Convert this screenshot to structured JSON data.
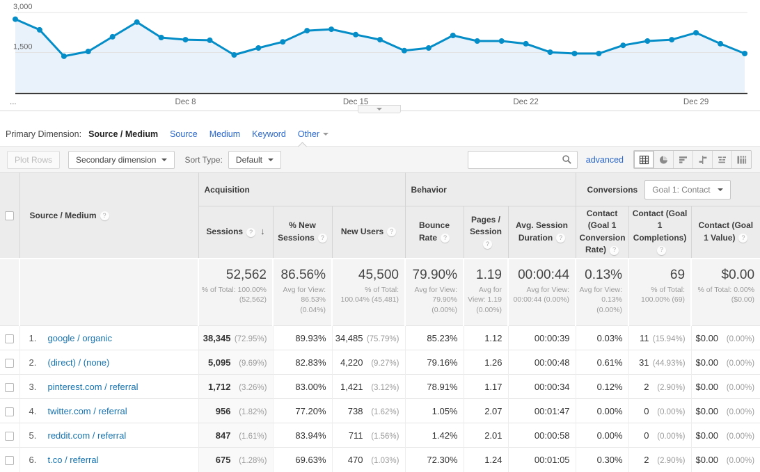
{
  "colors": {
    "chart_line": "#058dc7",
    "chart_fill": "#e9f2fa",
    "nav_link_blue": "#2a66c9",
    "row_link_blue": "#1673b0",
    "toolbar_bg": "#f5f5f5",
    "table_header_bg": "#ececec",
    "summary_bg": "#f4f4f4"
  },
  "icons": {
    "help": "?",
    "sort_desc": "↓"
  },
  "chart_data": {
    "type": "line",
    "series_name": "Sessions",
    "x": [
      "Dec 1",
      "Dec 2",
      "Dec 3",
      "Dec 4",
      "Dec 5",
      "Dec 6",
      "Dec 7",
      "Dec 8",
      "Dec 9",
      "Dec 10",
      "Dec 11",
      "Dec 12",
      "Dec 13",
      "Dec 14",
      "Dec 15",
      "Dec 16",
      "Dec 17",
      "Dec 18",
      "Dec 19",
      "Dec 20",
      "Dec 21",
      "Dec 22",
      "Dec 23",
      "Dec 24",
      "Dec 25",
      "Dec 26",
      "Dec 27",
      "Dec 28",
      "Dec 29",
      "Dec 30",
      "Dec 31"
    ],
    "values": [
      2750,
      2350,
      1360,
      1540,
      2090,
      2640,
      2060,
      1980,
      1960,
      1410,
      1670,
      1900,
      2320,
      2370,
      2170,
      1980,
      1570,
      1670,
      2140,
      1930,
      1930,
      1830,
      1510,
      1460,
      1460,
      1770,
      1930,
      1980,
      2240,
      1830,
      1460
    ],
    "ylim": [
      0,
      3000
    ],
    "y_ticks": [
      {
        "value": 1500,
        "label": "1,500"
      },
      {
        "value": 3000,
        "label": "3,000"
      }
    ],
    "x_ticks": [
      {
        "index": 0,
        "label": "..."
      },
      {
        "index": 7,
        "label": "Dec 8"
      },
      {
        "index": 14,
        "label": "Dec 15"
      },
      {
        "index": 21,
        "label": "Dec 22"
      },
      {
        "index": 28,
        "label": "Dec 29"
      }
    ],
    "grid": true,
    "legend": "none"
  },
  "primary_dimension": {
    "label": "Primary Dimension:",
    "selected": "Source / Medium",
    "options": [
      "Source",
      "Medium",
      "Keyword"
    ],
    "other_label": "Other"
  },
  "toolbar": {
    "plot_rows": "Plot Rows",
    "secondary_dimension": "Secondary dimension",
    "sort_type_label": "Sort Type:",
    "sort_type_value": "Default",
    "search_value": "",
    "advanced": "advanced",
    "view_icons": [
      "data-grid",
      "percentage",
      "performance",
      "comparison",
      "term-cloud",
      "pivot"
    ],
    "active_view": 0
  },
  "table": {
    "row_header": "Source / Medium",
    "groups": [
      {
        "label": "Acquisition"
      },
      {
        "label": "Behavior"
      },
      {
        "label": "Conversions",
        "goal_selector": "Goal 1: Contact"
      }
    ],
    "columns": [
      {
        "label": "Sessions",
        "sorted": true
      },
      {
        "label": "% New Sessions"
      },
      {
        "label": "New Users"
      },
      {
        "label": "Bounce Rate"
      },
      {
        "label": "Pages / Session"
      },
      {
        "label": "Avg. Session Duration"
      },
      {
        "label": "Contact (Goal 1 Conversion Rate)"
      },
      {
        "label": "Contact (Goal 1 Completions)"
      },
      {
        "label": "Contact (Goal 1 Value)"
      }
    ],
    "summary": [
      {
        "value": "52,562",
        "sub": "% of Total: 100.00% (52,562)"
      },
      {
        "value": "86.56%",
        "sub": "Avg for View: 86.53% (0.04%)"
      },
      {
        "value": "45,500",
        "sub": "% of Total: 100.04% (45,481)"
      },
      {
        "value": "79.90%",
        "sub": "Avg for View: 79.90% (0.00%)"
      },
      {
        "value": "1.19",
        "sub": "Avg for View: 1.19 (0.00%)"
      },
      {
        "value": "00:00:44",
        "sub": "Avg for View: 00:00:44 (0.00%)"
      },
      {
        "value": "0.13%",
        "sub": "Avg for View: 0.13% (0.00%)"
      },
      {
        "value": "69",
        "sub": "% of Total: 100.00% (69)"
      },
      {
        "value": "$0.00",
        "sub": "% of Total: 0.00% ($0.00)"
      }
    ],
    "rows": [
      {
        "num": "1.",
        "source": "google / organic",
        "metrics": [
          {
            "v": "38,345",
            "p": "(72.95%)"
          },
          {
            "v": "89.93%"
          },
          {
            "v": "34,485",
            "p": "(75.79%)"
          },
          {
            "v": "85.23%"
          },
          {
            "v": "1.12"
          },
          {
            "v": "00:00:39"
          },
          {
            "v": "0.03%"
          },
          {
            "v": "11",
            "p": "(15.94%)"
          },
          {
            "v": "$0.00",
            "p": "(0.00%)"
          }
        ]
      },
      {
        "num": "2.",
        "source": "(direct) / (none)",
        "metrics": [
          {
            "v": "5,095",
            "p": "(9.69%)"
          },
          {
            "v": "82.83%"
          },
          {
            "v": "4,220",
            "p": "(9.27%)"
          },
          {
            "v": "79.16%"
          },
          {
            "v": "1.26"
          },
          {
            "v": "00:00:48"
          },
          {
            "v": "0.61%"
          },
          {
            "v": "31",
            "p": "(44.93%)"
          },
          {
            "v": "$0.00",
            "p": "(0.00%)"
          }
        ]
      },
      {
        "num": "3.",
        "source": "pinterest.com / referral",
        "metrics": [
          {
            "v": "1,712",
            "p": "(3.26%)"
          },
          {
            "v": "83.00%"
          },
          {
            "v": "1,421",
            "p": "(3.12%)"
          },
          {
            "v": "78.91%"
          },
          {
            "v": "1.17"
          },
          {
            "v": "00:00:34"
          },
          {
            "v": "0.12%"
          },
          {
            "v": "2",
            "p": "(2.90%)"
          },
          {
            "v": "$0.00",
            "p": "(0.00%)"
          }
        ]
      },
      {
        "num": "4.",
        "source": "twitter.com / referral",
        "metrics": [
          {
            "v": "956",
            "p": "(1.82%)"
          },
          {
            "v": "77.20%"
          },
          {
            "v": "738",
            "p": "(1.62%)"
          },
          {
            "v": "1.05%"
          },
          {
            "v": "2.07"
          },
          {
            "v": "00:01:47"
          },
          {
            "v": "0.00%"
          },
          {
            "v": "0",
            "p": "(0.00%)"
          },
          {
            "v": "$0.00",
            "p": "(0.00%)"
          }
        ]
      },
      {
        "num": "5.",
        "source": "reddit.com / referral",
        "metrics": [
          {
            "v": "847",
            "p": "(1.61%)"
          },
          {
            "v": "83.94%"
          },
          {
            "v": "711",
            "p": "(1.56%)"
          },
          {
            "v": "1.42%"
          },
          {
            "v": "2.01"
          },
          {
            "v": "00:00:58"
          },
          {
            "v": "0.00%"
          },
          {
            "v": "0",
            "p": "(0.00%)"
          },
          {
            "v": "$0.00",
            "p": "(0.00%)"
          }
        ]
      },
      {
        "num": "6.",
        "source": "t.co / referral",
        "metrics": [
          {
            "v": "675",
            "p": "(1.28%)"
          },
          {
            "v": "69.63%"
          },
          {
            "v": "470",
            "p": "(1.03%)"
          },
          {
            "v": "72.30%"
          },
          {
            "v": "1.24"
          },
          {
            "v": "00:01:05"
          },
          {
            "v": "0.30%"
          },
          {
            "v": "2",
            "p": "(2.90%)"
          },
          {
            "v": "$0.00",
            "p": "(0.00%)"
          }
        ]
      }
    ]
  }
}
